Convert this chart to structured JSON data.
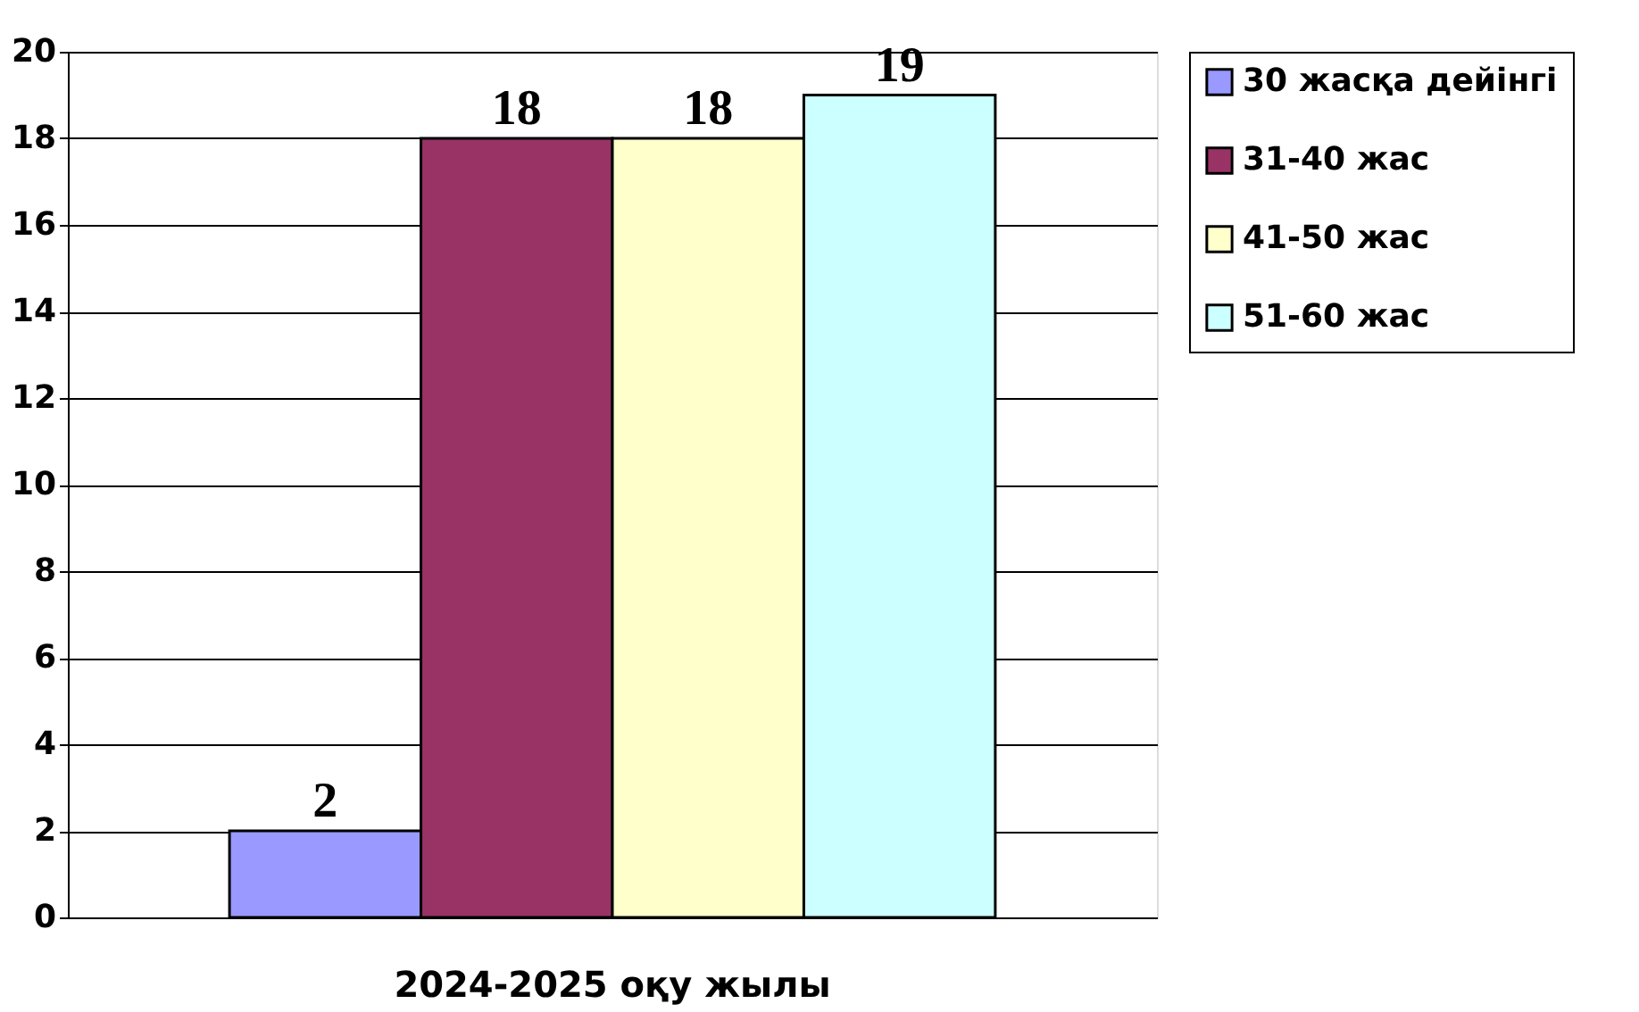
{
  "chart_data": {
    "type": "bar",
    "categories": [
      "2024-2025 оқу жылы"
    ],
    "series": [
      {
        "name": "30 жасқа дейінгі",
        "color": "#9999ff",
        "values": [
          2
        ]
      },
      {
        "name": "31-40 жас",
        "color": "#993366",
        "values": [
          18
        ]
      },
      {
        "name": "41-50 жас",
        "color": "#ffffcc",
        "values": [
          18
        ]
      },
      {
        "name": "51-60 жас",
        "color": "#ccffff",
        "values": [
          19
        ]
      }
    ],
    "ylim": [
      0,
      20
    ],
    "yticks": [
      0,
      2,
      4,
      6,
      8,
      10,
      12,
      14,
      16,
      18,
      20
    ],
    "grid": "y",
    "legend": "right",
    "data_labels": true
  }
}
